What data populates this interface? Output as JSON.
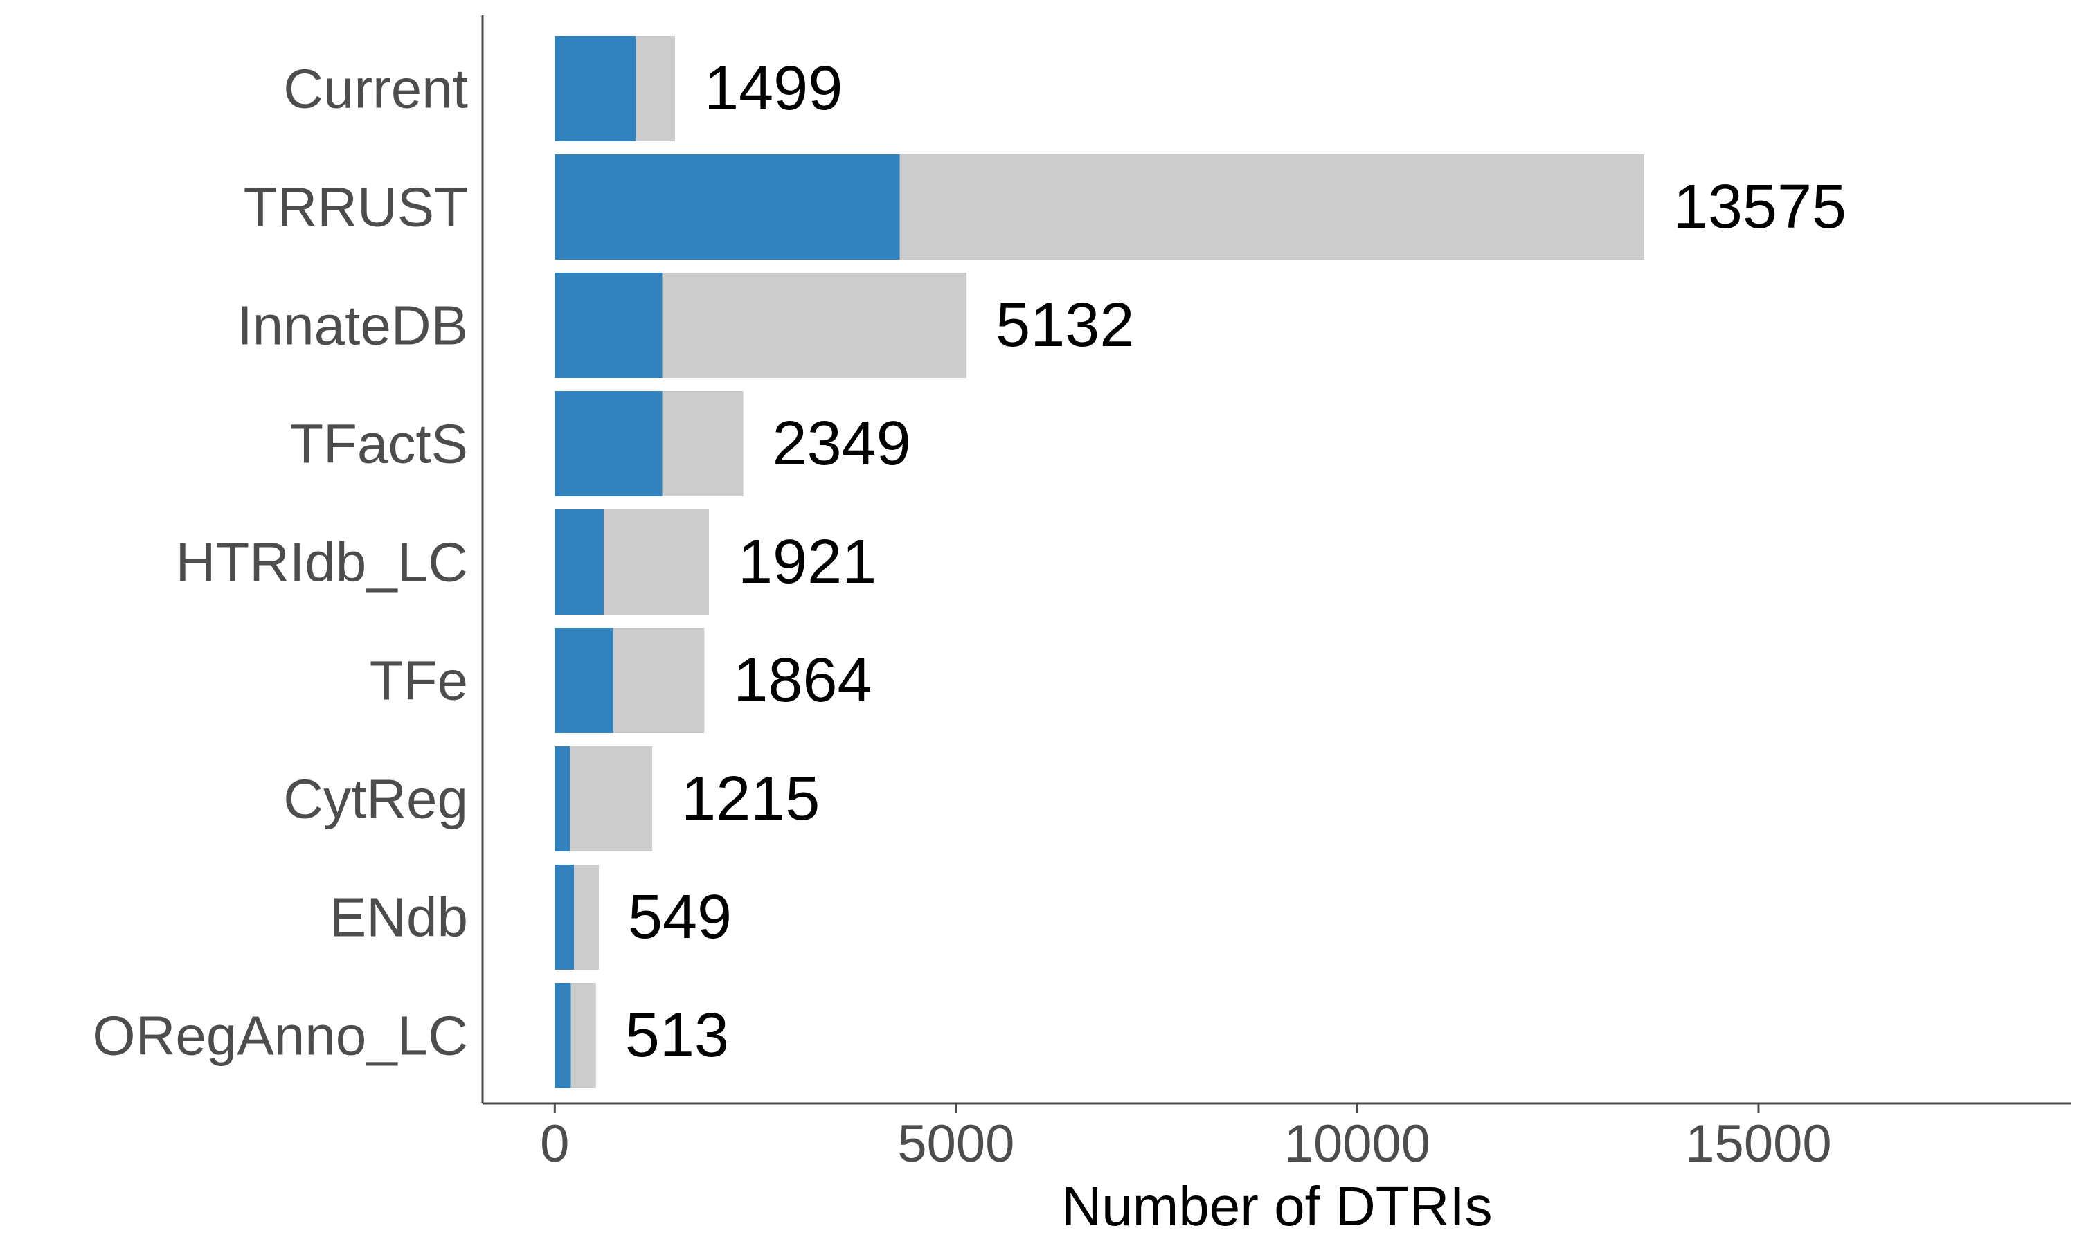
{
  "chart_data": {
    "type": "bar",
    "orientation": "horizontal",
    "stacked": true,
    "categories": [
      "Current",
      "TRRUST",
      "InnateDB",
      "TFactS",
      "HTRIdb_LC",
      "TFe",
      "CytReg",
      "ENdb",
      "ORegAnno_LC"
    ],
    "series": [
      {
        "values": [
          1010,
          4300,
          1340,
          1340,
          610,
          730,
          190,
          240,
          200
        ]
      },
      {
        "values": [
          489,
          9275,
          3792,
          1009,
          1311,
          1134,
          1025,
          309,
          313
        ]
      }
    ],
    "totals": [
      1499,
      13575,
      5132,
      2349,
      1921,
      1864,
      1215,
      549,
      513
    ],
    "title": "",
    "xlabel": "Number of DTRIs",
    "ylabel": "",
    "xlim": [
      -900,
      18900
    ],
    "xticks": [
      0,
      5000,
      10000,
      15000
    ],
    "grid": false,
    "legend": "none",
    "colors": {
      "series1": "#3182bd",
      "series2": "#cccccc",
      "axis": "#4d4d4d"
    }
  }
}
